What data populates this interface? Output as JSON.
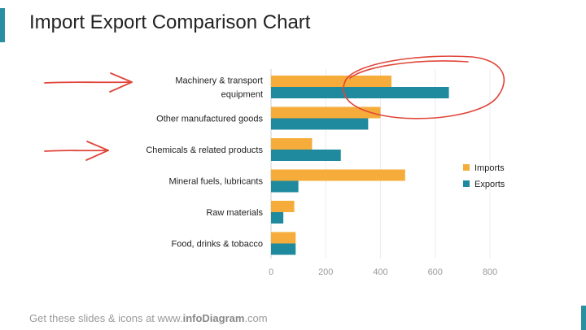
{
  "slide": {
    "title": "Import Export Comparison Chart",
    "footer_prefix": "Get these slides & icons at www.",
    "footer_brand": "infoDiagram",
    "footer_suffix": ".com"
  },
  "colors": {
    "imports": "#f5ac3a",
    "exports": "#1f8a9e",
    "annotation": "#e0463a",
    "accent": "#2a8fa0"
  },
  "chart_data": {
    "type": "bar",
    "orientation": "horizontal",
    "categories": [
      [
        "Machinery & transport",
        "equipment"
      ],
      [
        "Other manufactured goods"
      ],
      [
        "Chemicals & related products"
      ],
      [
        "Mineral fuels, lubricants"
      ],
      [
        "Raw materials"
      ],
      [
        "Food, drinks & tobacco"
      ]
    ],
    "series": [
      {
        "name": "Imports",
        "values": [
          440,
          400,
          150,
          490,
          85,
          90
        ]
      },
      {
        "name": "Exports",
        "values": [
          650,
          355,
          255,
          100,
          45,
          90
        ]
      }
    ],
    "xlim": [
      0,
      800
    ],
    "xticks": [
      0,
      200,
      400,
      600,
      800
    ],
    "grid": true,
    "legend": "right",
    "annotations": {
      "arrows_on": [
        "Machinery & transport equipment",
        "Chemicals & related products"
      ],
      "circle_on": "Machinery & transport equipment"
    }
  }
}
